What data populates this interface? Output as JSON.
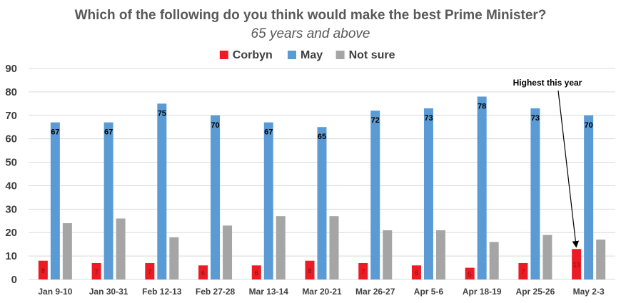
{
  "chart_data": {
    "type": "bar",
    "title": "Which of the following do you think would make the best Prime Minister?",
    "subtitle": "65 years and above",
    "categories": [
      "Jan 9-10",
      "Jan 30-31",
      "Feb 12-13",
      "Feb 27-28",
      "Mar 13-14",
      "Mar 20-21",
      "Mar 26-27",
      "Apr 5-6",
      "Apr 18-19",
      "Apr 25-26",
      "May 2-3"
    ],
    "series": [
      {
        "name": "Corbyn",
        "color": "#ed1c24",
        "values": [
          8,
          7,
          7,
          6,
          6,
          8,
          7,
          6,
          5,
          7,
          13
        ]
      },
      {
        "name": "May",
        "color": "#5b9bd5",
        "values": [
          67,
          67,
          75,
          70,
          67,
          65,
          72,
          73,
          78,
          73,
          70
        ]
      },
      {
        "name": "Not sure",
        "color": "#a5a5a5",
        "values": [
          24,
          26,
          18,
          23,
          27,
          27,
          21,
          21,
          16,
          19,
          17
        ]
      }
    ],
    "yticks": [
      0,
      10,
      20,
      30,
      40,
      50,
      60,
      70,
      80,
      90
    ],
    "ylim": [
      0,
      90
    ],
    "grid": true,
    "legend": "top-center",
    "data_labels": [
      "Corbyn",
      "May"
    ],
    "annotation": {
      "text": "Highest this year",
      "category": "May 2-3",
      "series": "Corbyn"
    }
  }
}
